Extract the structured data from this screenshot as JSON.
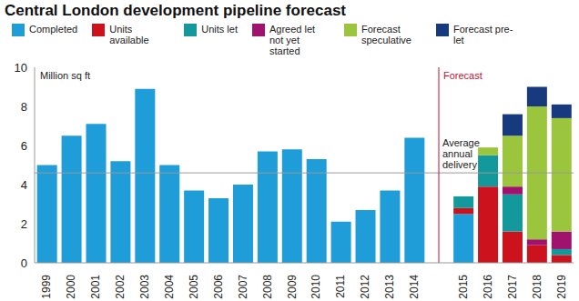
{
  "chart_data": {
    "type": "bar",
    "title": "Central London development pipeline forecast",
    "y_label": "Million sq ft",
    "categories": [
      "1999",
      "2000",
      "2001",
      "2002",
      "2003",
      "2004",
      "2005",
      "2006",
      "2007",
      "2008",
      "2009",
      "2010",
      "2011",
      "2012",
      "2013",
      "2014",
      null,
      "2015",
      "2016",
      "2017",
      "2018",
      "2019"
    ],
    "series": [
      {
        "name": "Completed",
        "color": "#1e9dd8",
        "values": [
          5.0,
          6.5,
          7.1,
          5.2,
          8.9,
          5.0,
          3.7,
          3.3,
          4.0,
          5.7,
          5.8,
          5.3,
          2.1,
          2.7,
          3.7,
          6.4,
          null,
          2.5,
          0,
          0,
          0,
          0
        ]
      },
      {
        "name": "Units available",
        "color": "#cc121c",
        "values": [
          0,
          0,
          0,
          0,
          0,
          0,
          0,
          0,
          0,
          0,
          0,
          0,
          0,
          0,
          0,
          0,
          null,
          0.3,
          3.9,
          1.6,
          0.9,
          0.4
        ]
      },
      {
        "name": "Units let",
        "color": "#13989b",
        "values": [
          0,
          0,
          0,
          0,
          0,
          0,
          0,
          0,
          0,
          0,
          0,
          0,
          0,
          0,
          0,
          0,
          null,
          0.6,
          1.6,
          1.9,
          0,
          0.3
        ]
      },
      {
        "name": "Agreed let not yet started",
        "color": "#a0126e",
        "values": [
          0,
          0,
          0,
          0,
          0,
          0,
          0,
          0,
          0,
          0,
          0,
          0,
          0,
          0,
          0,
          0,
          null,
          0,
          0,
          0.4,
          0.3,
          0.9
        ]
      },
      {
        "name": "Forecast speculative",
        "color": "#9bc53d",
        "values": [
          0,
          0,
          0,
          0,
          0,
          0,
          0,
          0,
          0,
          0,
          0,
          0,
          0,
          0,
          0,
          0,
          null,
          0,
          0.4,
          2.6,
          6.8,
          5.8
        ]
      },
      {
        "name": "Forecast pre-let",
        "color": "#17397e",
        "values": [
          0,
          0,
          0,
          0,
          0,
          0,
          0,
          0,
          0,
          0,
          0,
          0,
          0,
          0,
          0,
          0,
          null,
          0,
          0,
          1.1,
          1.0,
          0.7
        ]
      }
    ],
    "stacked": true,
    "legend": "top",
    "grid": false,
    "ylim": [
      0,
      10
    ],
    "yticks": [
      0,
      2,
      4,
      6,
      8,
      10
    ],
    "annotations": [
      {
        "type": "hline",
        "text": "Average annual delivery",
        "y": 4.6
      },
      {
        "type": "vline",
        "text": "Forecast"
      }
    ]
  }
}
